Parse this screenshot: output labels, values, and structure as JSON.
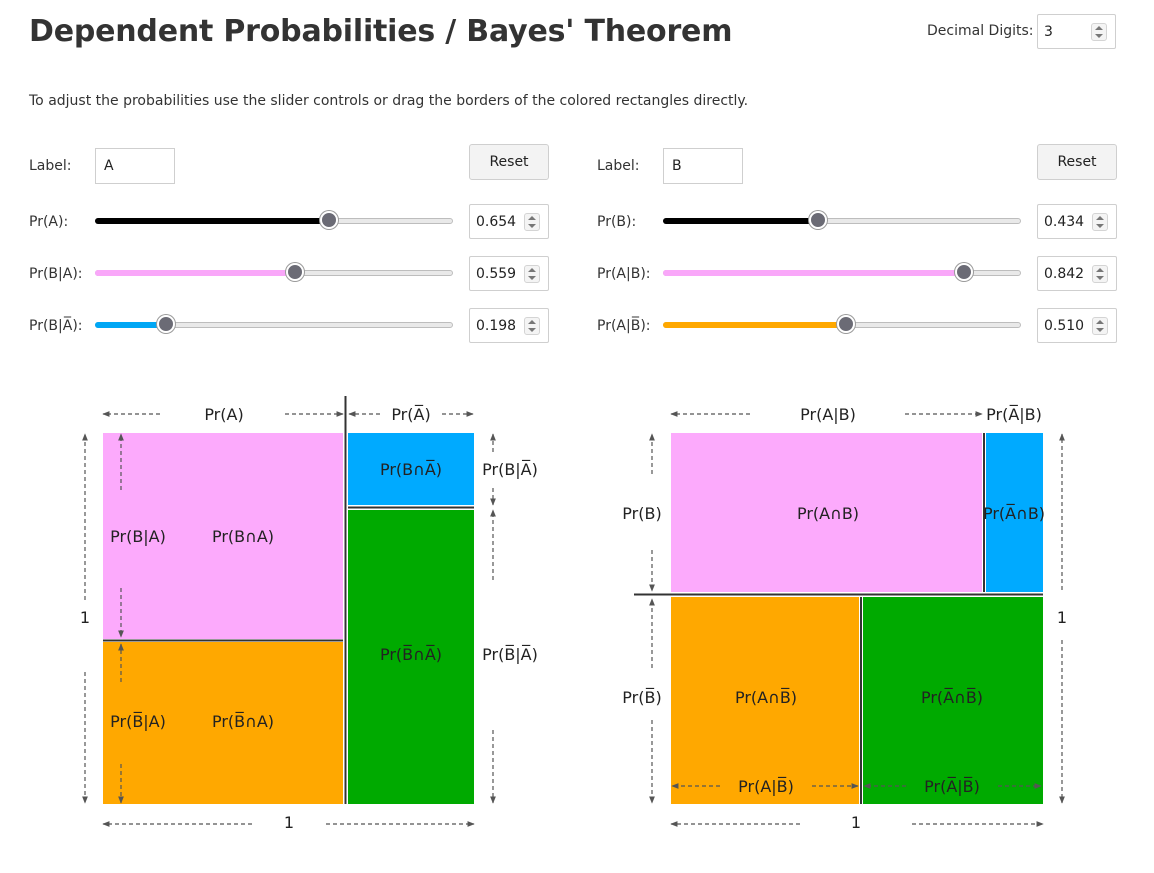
{
  "header": {
    "title": "Dependent Probabilities / Bayes' Theorem",
    "decimal_digits_label": "Decimal Digits:",
    "decimal_digits_value": "3"
  },
  "instructions": "To adjust the probabilities use the slider controls or drag the borders of the colored rectangles directly.",
  "left_panel": {
    "label_caption": "Label:",
    "label_value": "A",
    "reset_label": "Reset",
    "rows": [
      {
        "label": "Pr(A):",
        "value": "0.654",
        "fraction": 0.654,
        "color": "#000000"
      },
      {
        "label": "Pr(B|A):",
        "value": "0.559",
        "fraction": 0.559,
        "color": "#f9a7f9"
      },
      {
        "label": "Pr(B|A̅):",
        "value": "0.198",
        "fraction": 0.198,
        "color": "#00a7f5"
      }
    ]
  },
  "right_panel": {
    "label_caption": "Label:",
    "label_value": "B",
    "reset_label": "Reset",
    "rows": [
      {
        "label": "Pr(B):",
        "value": "0.434",
        "fraction": 0.434,
        "color": "#000000"
      },
      {
        "label": "Pr(A|B):",
        "value": "0.842",
        "fraction": 0.842,
        "color": "#f9a7f9"
      },
      {
        "label": "Pr(A|B̅):",
        "value": "0.510",
        "fraction": 0.51,
        "color": "#ffa800"
      }
    ]
  },
  "colors": {
    "pink": "#fcaafc",
    "blue": "#00aaff",
    "orange": "#ffa800",
    "green": "#00aa00"
  },
  "left_diagram": {
    "top_left": "Pr(A)",
    "top_right": "Pr(A̅)",
    "pink": "Pr(B∩A)",
    "blue": "Pr(B∩A̅)",
    "orange": "Pr(B̅∩A)",
    "green": "Pr(B̅∩A̅)",
    "side_top": "Pr(B|A)",
    "side_bottom": "Pr(B̅|A)",
    "right_top": "Pr(B|A̅)",
    "right_bottom": "Pr(B̅|A̅)",
    "left_one": "1",
    "bottom_one": "1"
  },
  "right_diagram": {
    "top_left": "Pr(A|B)",
    "top_right": "Pr(A̅|B)",
    "pink": "Pr(A∩B)",
    "blue": "Pr(A̅∩B)",
    "orange": "Pr(A∩B̅)",
    "green": "Pr(A̅∩B̅)",
    "left_top": "Pr(B)",
    "left_bottom": "Pr(B̅)",
    "bottom_left": "Pr(A|B̅)",
    "bottom_right": "Pr(A̅|B̅)",
    "right_one": "1",
    "bottom_one": "1"
  }
}
